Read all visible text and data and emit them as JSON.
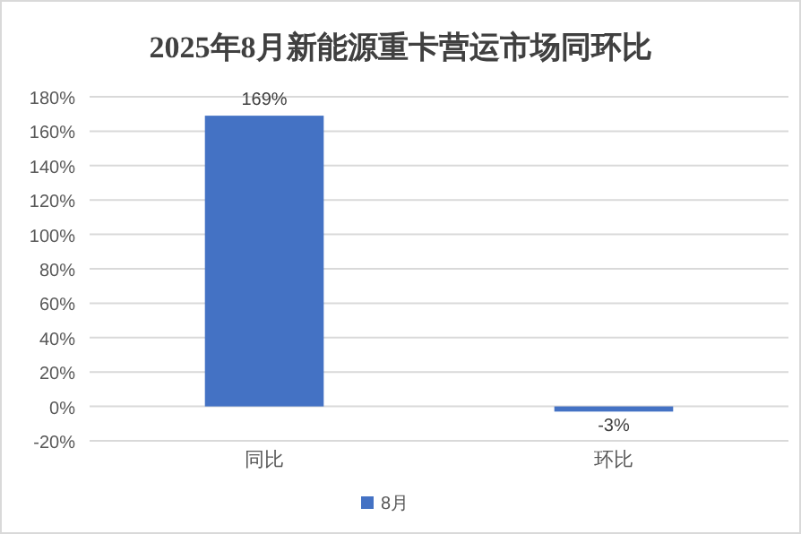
{
  "chart_data": {
    "type": "bar",
    "title": "2025年8月新能源重卡营运市场同环比",
    "categories": [
      "同比",
      "环比"
    ],
    "series": [
      {
        "name": "8月",
        "color": "#4472c4",
        "values": [
          169,
          -3
        ]
      }
    ],
    "value_labels": [
      "169%",
      "-3%"
    ],
    "ylim": [
      -20,
      180
    ],
    "yticks": [
      {
        "value": -20,
        "label": "-20%"
      },
      {
        "value": 0,
        "label": "0%"
      },
      {
        "value": 20,
        "label": "20%"
      },
      {
        "value": 40,
        "label": "40%"
      },
      {
        "value": 60,
        "label": "60%"
      },
      {
        "value": 80,
        "label": "80%"
      },
      {
        "value": 100,
        "label": "100%"
      },
      {
        "value": 120,
        "label": "120%"
      },
      {
        "value": 140,
        "label": "140%"
      },
      {
        "value": 160,
        "label": "160%"
      },
      {
        "value": 180,
        "label": "180%"
      }
    ],
    "grid": "y",
    "legend": "bottom"
  }
}
